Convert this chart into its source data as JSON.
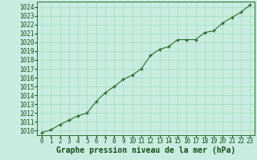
{
  "x": [
    0,
    1,
    2,
    3,
    4,
    5,
    6,
    7,
    8,
    9,
    10,
    11,
    12,
    13,
    14,
    15,
    16,
    17,
    18,
    19,
    20,
    21,
    22,
    23
  ],
  "y": [
    1009.8,
    1010.1,
    1010.7,
    1011.2,
    1011.7,
    1012.0,
    1013.3,
    1014.3,
    1015.0,
    1015.8,
    1016.3,
    1017.0,
    1018.5,
    1019.2,
    1019.5,
    1020.3,
    1020.3,
    1020.3,
    1021.1,
    1021.3,
    1022.2,
    1022.8,
    1023.4,
    1024.2
  ],
  "line_color": "#2d6a2d",
  "marker_color": "#2d6a2d",
  "bg_color": "#c8ede0",
  "grid_color": "#a8d8c0",
  "xlabel": "Graphe pression niveau de la mer (hPa)",
  "xlabel_color": "#1a4a1a",
  "ylabel_ticks": [
    1010,
    1011,
    1012,
    1013,
    1014,
    1015,
    1016,
    1017,
    1018,
    1019,
    1020,
    1021,
    1022,
    1023,
    1024
  ],
  "ylim": [
    1009.5,
    1024.6
  ],
  "xlim": [
    -0.5,
    23.5
  ],
  "tick_color": "#1a4a1a",
  "spine_color": "#2d6a2d",
  "font_size_ticks": 5.5,
  "font_size_xlabel": 7.0
}
